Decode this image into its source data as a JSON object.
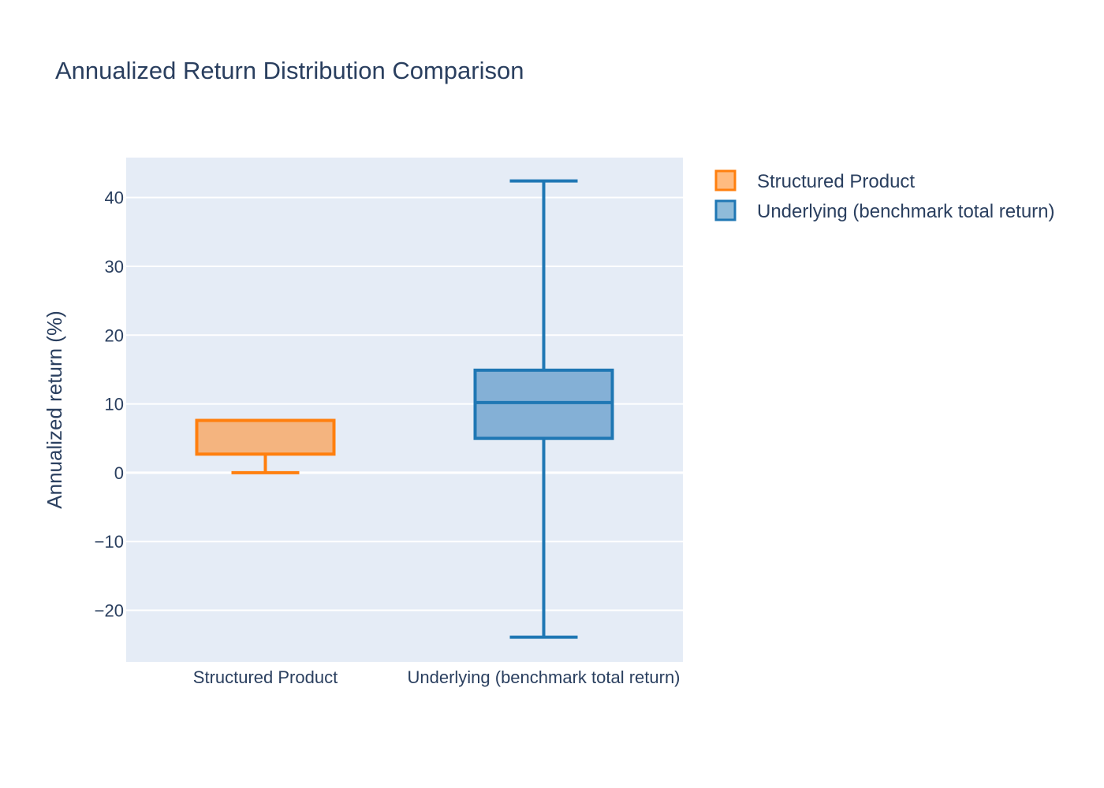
{
  "chart_data": {
    "type": "box",
    "title": "Annualized Return Distribution Comparison",
    "xlabel": "",
    "ylabel": "Annualized return (%)",
    "ylim": [
      -27.5,
      45.8
    ],
    "yticks": [
      40,
      30,
      20,
      10,
      0,
      -10,
      -20
    ],
    "ytick_labels": [
      "40",
      "30",
      "20",
      "10",
      "0",
      "−10",
      "−20"
    ],
    "categories": [
      "Structured Product",
      "Underlying (benchmark total return)"
    ],
    "grid": true,
    "legend_position": "top-right",
    "series": [
      {
        "name": "Structured Product",
        "category": "Structured Product",
        "stroke": "#ff7f0e",
        "fill": "#f4b47f",
        "legend_fill": "#ffbb80",
        "min": 0.0,
        "q1": 2.7,
        "median": 7.6,
        "q3": 7.6,
        "max": 7.6
      },
      {
        "name": "Underlying (benchmark total return)",
        "category": "Underlying (benchmark total return)",
        "stroke": "#1f77b4",
        "fill": "#84b0d6",
        "legend_fill": "#8fbbd9",
        "min": -23.9,
        "q1": 5.0,
        "median": 10.2,
        "q3": 14.9,
        "max": 42.4
      }
    ],
    "colors": {
      "plot_background": "#e5ecf6",
      "gridline": "#ffffff",
      "text": "#2a3f5f"
    }
  }
}
